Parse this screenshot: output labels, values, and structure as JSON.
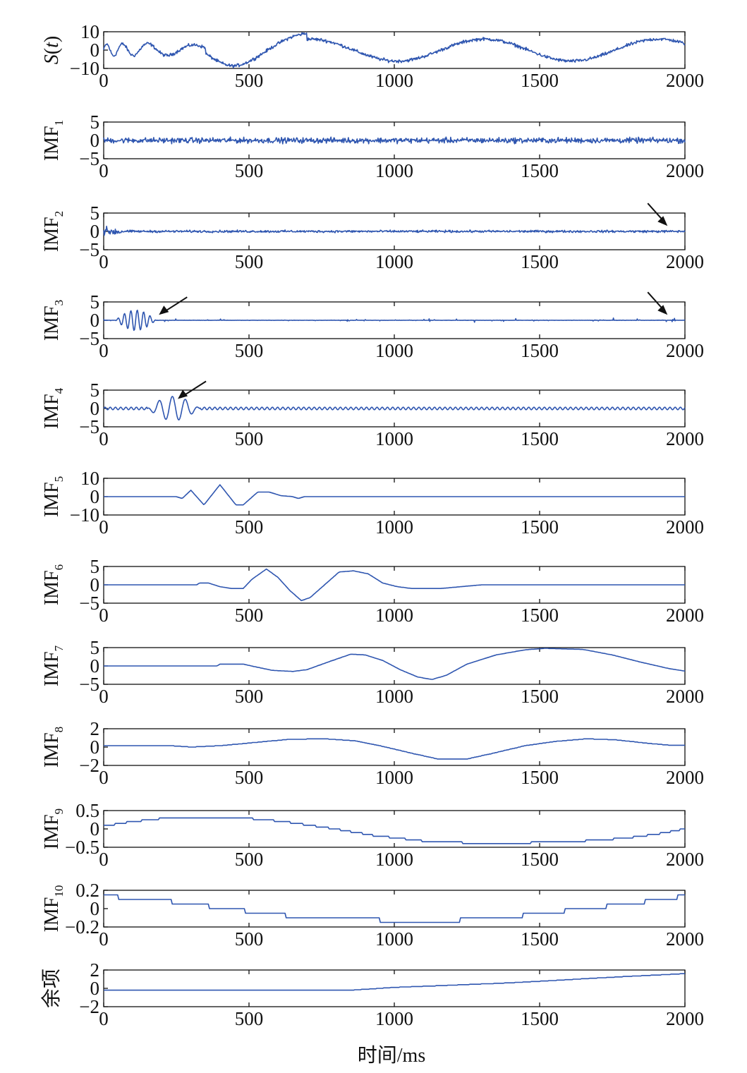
{
  "chart_data": {
    "type": "line",
    "xlabel": "时间/ms",
    "xlim": [
      0,
      2000
    ],
    "x_ticks": [
      "0",
      "500",
      "1000",
      "1500",
      "2000"
    ],
    "line_color": "#2f56b0",
    "panels": [
      {
        "ylabel": "S(t)",
        "ylabel_main": "S(t)",
        "ylabel_sub": "",
        "ylim": [
          -10,
          10
        ],
        "y_ticks": [
          "10",
          "0",
          "−10"
        ],
        "y_tick_values": [
          10,
          0,
          -10
        ],
        "signal": {
          "kind": "composite",
          "noise": 1.3
        },
        "arrows": []
      },
      {
        "ylabel": "IMF1",
        "ylabel_main": "IMF",
        "ylabel_sub": "1",
        "ylim": [
          -5,
          5
        ],
        "y_ticks": [
          "5",
          "0",
          "−5"
        ],
        "y_tick_values": [
          5,
          0,
          -5
        ],
        "signal": {
          "kind": "noise",
          "amp": 1.1
        },
        "arrows": []
      },
      {
        "ylabel": "IMF2",
        "ylabel_main": "IMF",
        "ylabel_sub": "2",
        "ylim": [
          -5,
          5
        ],
        "y_ticks": [
          "5",
          "0",
          "−5"
        ],
        "y_tick_values": [
          5,
          0,
          -5
        ],
        "signal": {
          "kind": "noise",
          "amp": 0.45,
          "burst": [
            [
              0,
              60,
              1.8
            ]
          ]
        },
        "arrows": [
          {
            "tip_x": 1940,
            "tip_y": 1.5
          }
        ]
      },
      {
        "ylabel": "IMF3",
        "ylabel_main": "IMF",
        "ylabel_sub": "3",
        "ylim": [
          -5,
          5
        ],
        "y_ticks": [
          "5",
          "0",
          "−5"
        ],
        "y_tick_values": [
          5,
          0,
          -5
        ],
        "signal": {
          "kind": "burst",
          "start": 40,
          "end": 180,
          "amp": 2.8,
          "period": 22,
          "sparse": 0.35
        },
        "arrows": [
          {
            "tip_x": 190,
            "tip_y": 1.5
          },
          {
            "tip_x": 1940,
            "tip_y": 1.5
          }
        ]
      },
      {
        "ylabel": "IMF4",
        "ylabel_main": "IMF",
        "ylabel_sub": "4",
        "ylim": [
          -5,
          5
        ],
        "y_ticks": [
          "5",
          "0",
          "−5"
        ],
        "y_tick_values": [
          5,
          0,
          -5
        ],
        "signal": {
          "kind": "burst4",
          "start": 150,
          "end": 330,
          "amp": 3.3,
          "period": 45,
          "ripple": 0.35,
          "rperiod": 18
        },
        "arrows": [
          {
            "tip_x": 255,
            "tip_y": 2.6
          }
        ]
      },
      {
        "ylabel": "IMF5",
        "ylabel_main": "IMF",
        "ylabel_sub": "5",
        "ylim": [
          -10,
          10
        ],
        "y_ticks": [
          "10",
          "0",
          "−10"
        ],
        "y_tick_values": [
          10,
          0,
          -10
        ],
        "signal": {
          "kind": "points",
          "pts": [
            [
              0,
              0
            ],
            [
              250,
              0
            ],
            [
              270,
              -1
            ],
            [
              300,
              3.5
            ],
            [
              345,
              -4.5
            ],
            [
              400,
              6.5
            ],
            [
              455,
              -4.5
            ],
            [
              480,
              -4.5
            ],
            [
              530,
              2.5
            ],
            [
              570,
              2.5
            ],
            [
              610,
              0.5
            ],
            [
              650,
              0
            ],
            [
              670,
              -1
            ],
            [
              690,
              0
            ],
            [
              2000,
              0
            ]
          ]
        },
        "arrows": []
      },
      {
        "ylabel": "IMF6",
        "ylabel_main": "IMF",
        "ylabel_sub": "6",
        "ylim": [
          -5,
          5
        ],
        "y_ticks": [
          "5",
          "0",
          "−5"
        ],
        "y_tick_values": [
          5,
          0,
          -5
        ],
        "signal": {
          "kind": "points",
          "pts": [
            [
              0,
              0
            ],
            [
              320,
              0
            ],
            [
              330,
              0.5
            ],
            [
              360,
              0.5
            ],
            [
              400,
              -0.5
            ],
            [
              440,
              -1
            ],
            [
              480,
              -1
            ],
            [
              510,
              1.5
            ],
            [
              560,
              4.3
            ],
            [
              600,
              2
            ],
            [
              640,
              -1.5
            ],
            [
              680,
              -4.3
            ],
            [
              710,
              -3.5
            ],
            [
              760,
              0
            ],
            [
              810,
              3.5
            ],
            [
              860,
              3.8
            ],
            [
              910,
              3
            ],
            [
              960,
              0.5
            ],
            [
              1010,
              -0.5
            ],
            [
              1060,
              -1
            ],
            [
              1100,
              -1
            ],
            [
              1160,
              -1
            ],
            [
              1300,
              0
            ],
            [
              2000,
              0
            ]
          ]
        },
        "arrows": []
      },
      {
        "ylabel": "IMF7",
        "ylabel_main": "IMF",
        "ylabel_sub": "7",
        "ylim": [
          -5,
          5
        ],
        "y_ticks": [
          "5",
          "0",
          "−5"
        ],
        "y_tick_values": [
          5,
          0,
          -5
        ],
        "signal": {
          "kind": "points",
          "pts": [
            [
              0,
              0
            ],
            [
              390,
              0
            ],
            [
              400,
              0.5
            ],
            [
              480,
              0.5
            ],
            [
              520,
              -0.2
            ],
            [
              580,
              -1.2
            ],
            [
              650,
              -1.5
            ],
            [
              700,
              -1
            ],
            [
              770,
              1
            ],
            [
              850,
              3.2
            ],
            [
              900,
              3
            ],
            [
              960,
              1.5
            ],
            [
              1020,
              -1
            ],
            [
              1080,
              -3
            ],
            [
              1130,
              -3.7
            ],
            [
              1180,
              -2.5
            ],
            [
              1250,
              0.5
            ],
            [
              1350,
              3
            ],
            [
              1450,
              4.4
            ],
            [
              1520,
              4.8
            ],
            [
              1650,
              4.5
            ],
            [
              1750,
              3
            ],
            [
              1850,
              1
            ],
            [
              1950,
              -0.8
            ],
            [
              2000,
              -1.4
            ]
          ]
        },
        "arrows": []
      },
      {
        "ylabel": "IMF8",
        "ylabel_main": "IMF",
        "ylabel_sub": "8",
        "ylim": [
          -2,
          2
        ],
        "y_ticks": [
          "2",
          "0",
          "−2"
        ],
        "y_tick_values": [
          2,
          0,
          -2
        ],
        "signal": {
          "kind": "points",
          "pts": [
            [
              0,
              0.15
            ],
            [
              230,
              0.15
            ],
            [
              300,
              0
            ],
            [
              400,
              0.15
            ],
            [
              520,
              0.5
            ],
            [
              640,
              0.85
            ],
            [
              760,
              0.9
            ],
            [
              860,
              0.7
            ],
            [
              950,
              0.15
            ],
            [
              1050,
              -0.6
            ],
            [
              1150,
              -1.3
            ],
            [
              1250,
              -1.3
            ],
            [
              1350,
              -0.6
            ],
            [
              1450,
              0.15
            ],
            [
              1550,
              0.6
            ],
            [
              1660,
              0.9
            ],
            [
              1760,
              0.8
            ],
            [
              1860,
              0.45
            ],
            [
              1950,
              0.2
            ],
            [
              2000,
              0.2
            ]
          ]
        },
        "arrows": []
      },
      {
        "ylabel": "IMF9",
        "ylabel_main": "IMF",
        "ylabel_sub": "9",
        "ylim": [
          -0.5,
          0.5
        ],
        "y_ticks": [
          "0.5",
          "0",
          "−0.5"
        ],
        "y_tick_values": [
          0.5,
          0,
          -0.5
        ],
        "signal": {
          "kind": "points",
          "pts": [
            [
              0,
              0.08
            ],
            [
              100,
              0.2
            ],
            [
              220,
              0.3
            ],
            [
              350,
              0.32
            ],
            [
              480,
              0.3
            ],
            [
              620,
              0.2
            ],
            [
              780,
              0.02
            ],
            [
              930,
              -0.18
            ],
            [
              1100,
              -0.33
            ],
            [
              1250,
              -0.38
            ],
            [
              1450,
              -0.38
            ],
            [
              1650,
              -0.33
            ],
            [
              1800,
              -0.25
            ],
            [
              1920,
              -0.12
            ],
            [
              2000,
              0
            ]
          ]
        },
        "arrows": []
      },
      {
        "ylabel": "IMF10",
        "ylabel_main": "IMF",
        "ylabel_sub": "10",
        "ylim": [
          -0.2,
          0.2
        ],
        "y_ticks": [
          "0.2",
          "0",
          "−0.2"
        ],
        "y_tick_values": [
          0.2,
          0,
          -0.2
        ],
        "signal": {
          "kind": "points",
          "pts": [
            [
              0,
              0.13
            ],
            [
              100,
              0.12
            ],
            [
              250,
              0.07
            ],
            [
              400,
              0.01
            ],
            [
              600,
              -0.07
            ],
            [
              800,
              -0.11
            ],
            [
              1000,
              -0.13
            ],
            [
              1200,
              -0.13
            ],
            [
              1400,
              -0.09
            ],
            [
              1600,
              -0.02
            ],
            [
              1800,
              0.05
            ],
            [
              1950,
              0.11
            ],
            [
              2000,
              0.14
            ]
          ]
        },
        "arrows": []
      },
      {
        "ylabel": "余项",
        "ylabel_main": "余项",
        "ylabel_sub": "",
        "ylim": [
          -2,
          2
        ],
        "y_ticks": [
          "2",
          "0",
          "−2"
        ],
        "y_tick_values": [
          2,
          0,
          -2
        ],
        "signal": {
          "kind": "points",
          "pts": [
            [
              0,
              -0.2
            ],
            [
              850,
              -0.2
            ],
            [
              1000,
              0.1
            ],
            [
              1200,
              0.35
            ],
            [
              1400,
              0.6
            ],
            [
              1600,
              0.95
            ],
            [
              1800,
              1.3
            ],
            [
              2000,
              1.6
            ]
          ]
        },
        "arrows": []
      }
    ]
  }
}
